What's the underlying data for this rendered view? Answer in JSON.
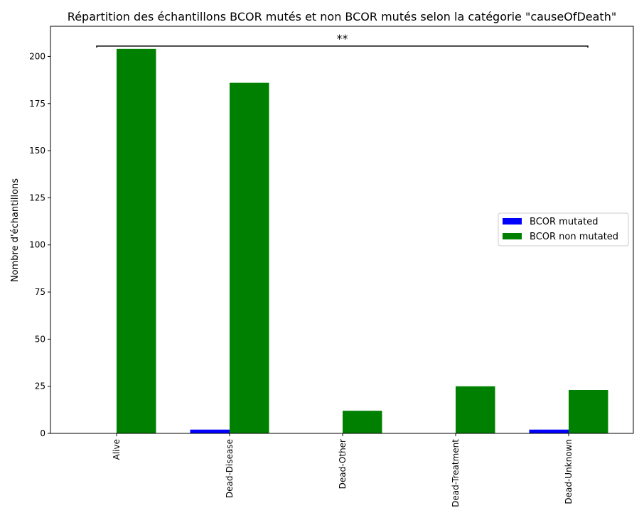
{
  "chart_data": {
    "type": "bar",
    "title": "Répartition des échantillons BCOR mutés et non BCOR mutés selon la catégorie \"causeOfDeath\"",
    "xlabel": "",
    "ylabel": "Nombre d'échantillons",
    "categories": [
      "Alive",
      "Dead-Disease",
      "Dead-Other",
      "Dead-Treatment",
      "Dead-Unknown"
    ],
    "series": [
      {
        "name": "BCOR mutated",
        "color": "#0000ff",
        "values": [
          0,
          2,
          0,
          0,
          2
        ]
      },
      {
        "name": "BCOR non mutated",
        "color": "#008000",
        "values": [
          204,
          186,
          12,
          25,
          23
        ]
      }
    ],
    "ylim": [
      0,
      216
    ],
    "yticks": [
      0,
      25,
      50,
      75,
      100,
      125,
      150,
      175,
      200
    ],
    "grid": false,
    "legend_position": "center-right",
    "significance": {
      "label": "**",
      "level": 205.5
    }
  }
}
